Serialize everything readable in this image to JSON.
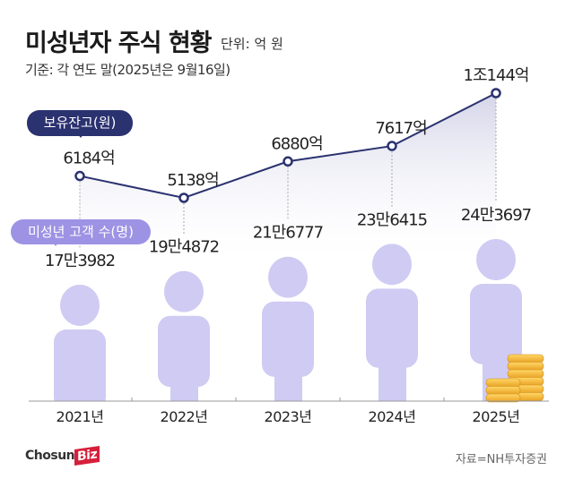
{
  "header": {
    "title": "미성년자 주식 현황",
    "unit": "단위: 억 원",
    "basis": "기준: 각 연도 말(2025년은 9월16일)"
  },
  "legend": {
    "balance": "보유잔고(원)",
    "customers": "미성년 고객 수(명)"
  },
  "chart_data": {
    "type": "line",
    "categories": [
      "2021년",
      "2022년",
      "2023년",
      "2024년",
      "2025년"
    ],
    "series": [
      {
        "name": "보유잔고(원)",
        "values": [
          6184,
          5138,
          6880,
          7617,
          10144
        ],
        "labels": [
          "6184억",
          "5138억",
          "6880억",
          "7617억",
          "1조144억"
        ],
        "color": "#2b3270"
      },
      {
        "name": "미성년 고객 수(명)",
        "values": [
          173982,
          194872,
          216777,
          236415,
          243697
        ],
        "labels": [
          "17만3982",
          "19만4872",
          "21만6777",
          "23만6415",
          "24만3697"
        ],
        "color": "#cfcbf3"
      }
    ]
  },
  "footer": {
    "logo": "ChosunBiz",
    "source": "자료=NH투자증권"
  }
}
